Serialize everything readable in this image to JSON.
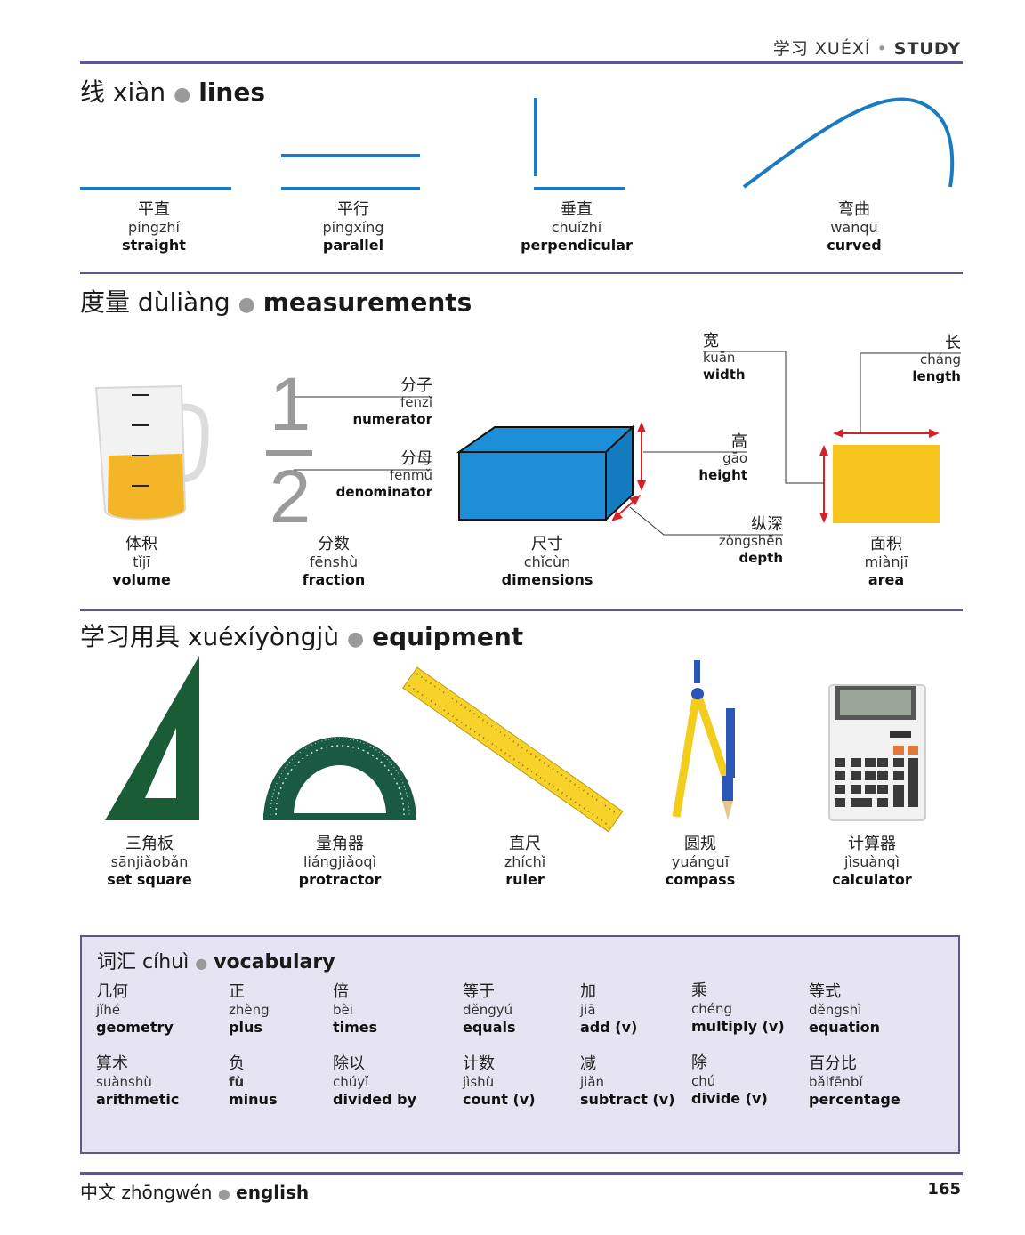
{
  "header": {
    "zh": "学习",
    "py": "XUÉXÍ",
    "sep": "•",
    "en": "STUDY"
  },
  "lines": {
    "title": {
      "zh": "线",
      "py": "xiàn",
      "sep": "●",
      "en": "lines"
    },
    "items": [
      {
        "zh": "平直",
        "py": "píngzhí",
        "en": "straight"
      },
      {
        "zh": "平行",
        "py": "píngxíng",
        "en": "parallel"
      },
      {
        "zh": "垂直",
        "py": "chuízhí",
        "en": "perpendicular"
      },
      {
        "zh": "弯曲",
        "py": "wānqū",
        "en": "curved"
      }
    ],
    "line_color": "#1a7bc0"
  },
  "measurements": {
    "title": {
      "zh": "度量",
      "py": "dùliàng",
      "sep": "●",
      "en": "measurements"
    },
    "items": [
      {
        "zh": "体积",
        "py": "tǐjī",
        "en": "volume"
      },
      {
        "zh": "分数",
        "py": "fēnshù",
        "en": "fraction"
      },
      {
        "zh": "尺寸",
        "py": "chǐcùn",
        "en": "dimensions"
      },
      {
        "zh": "面积",
        "py": "miànjī",
        "en": "area"
      }
    ],
    "fraction": {
      "num": "1",
      "den": "2"
    },
    "labels": {
      "numerator": {
        "zh": "分子",
        "py": "fēnzǐ",
        "en": "numerator"
      },
      "denominator": {
        "zh": "分母",
        "py": "fēnmǔ",
        "en": "denominator"
      },
      "height": {
        "zh": "高",
        "py": "gāo",
        "en": "height"
      },
      "depth": {
        "zh": "纵深",
        "py": "zòngshēn",
        "en": "depth"
      },
      "width": {
        "zh": "宽",
        "py": "kuān",
        "en": "width"
      },
      "length": {
        "zh": "长",
        "py": "cháng",
        "en": "length"
      }
    },
    "box_color": "#1d8fd8",
    "area_color": "#f7c51c",
    "arrow_color": "#d2232a"
  },
  "equipment": {
    "title": {
      "zh": "学习用具",
      "py": "xuéxíyòngjù",
      "sep": "●",
      "en": "equipment"
    },
    "items": [
      {
        "zh": "三角板",
        "py": "sānjiǎobǎn",
        "en": "set square"
      },
      {
        "zh": "量角器",
        "py": "liángjiǎoqì",
        "en": "protractor"
      },
      {
        "zh": "直尺",
        "py": "zhíchǐ",
        "en": "ruler"
      },
      {
        "zh": "圆规",
        "py": "yuánguī",
        "en": "compass"
      },
      {
        "zh": "计算器",
        "py": "jìsuànqì",
        "en": "calculator"
      }
    ]
  },
  "vocabulary": {
    "title": {
      "zh": "词汇",
      "py": "cíhuì",
      "sep": "●",
      "en": "vocabulary"
    },
    "rows": [
      [
        {
          "zh": "几何",
          "py": "jǐhé",
          "en": "geometry"
        },
        {
          "zh": "正",
          "py": "zhèng",
          "en": "plus"
        },
        {
          "zh": "倍",
          "py": "bèi",
          "en": "times"
        },
        {
          "zh": "等于",
          "py": "děngyú",
          "en": "equals"
        },
        {
          "zh": "加",
          "py": "jiā",
          "en": "add (v)"
        },
        {
          "zh": "乘",
          "py": "chéng",
          "en": "multiply (v)"
        },
        {
          "zh": "等式",
          "py": "děngshì",
          "en": "equation"
        }
      ],
      [
        {
          "zh": "算术",
          "py": "suànshù",
          "en": "arithmetic"
        },
        {
          "zh": "负",
          "py": "fù",
          "en": "minus"
        },
        {
          "zh": "除以",
          "py": "chúyǐ",
          "en": "divided by"
        },
        {
          "zh": "计数",
          "py": "jìshù",
          "en": "count (v)"
        },
        {
          "zh": "减",
          "py": "jiǎn",
          "en": "subtract (v)"
        },
        {
          "zh": "除",
          "py": "chú",
          "en": "divide (v)"
        },
        {
          "zh": "百分比",
          "py": "bǎifēnbǐ",
          "en": "percentage"
        }
      ]
    ]
  },
  "footer": {
    "zh": "中文",
    "py": "zhōngwén",
    "sep": "●",
    "en": "english",
    "page": "165"
  }
}
